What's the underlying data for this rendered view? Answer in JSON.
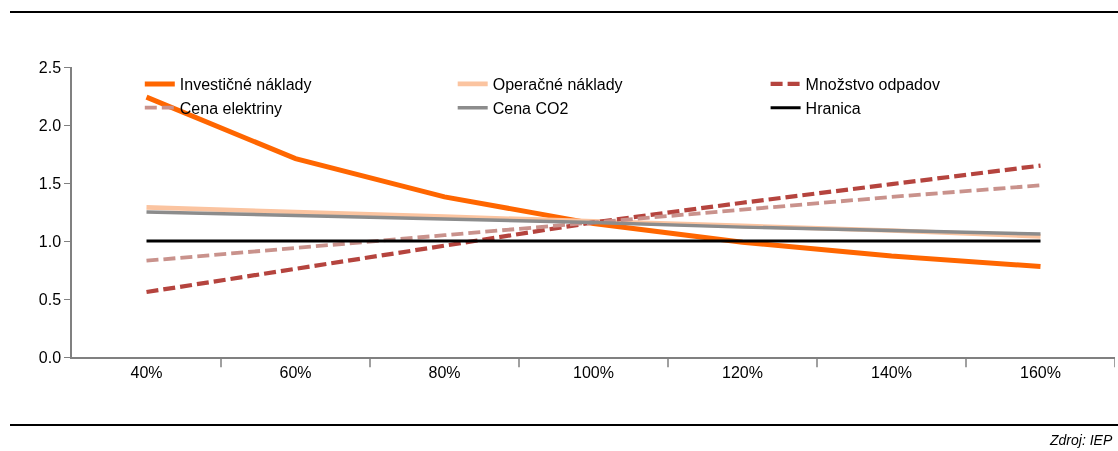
{
  "chart_data": {
    "type": "line",
    "categories": [
      "40%",
      "60%",
      "80%",
      "100%",
      "120%",
      "140%",
      "160%"
    ],
    "series": [
      {
        "name": "Investičné náklady",
        "color": "#ff6600",
        "line_style": "solid",
        "values": [
          2.24,
          1.71,
          1.38,
          1.15,
          0.99,
          0.87,
          0.78
        ]
      },
      {
        "name": "Operačné náklady",
        "color": "#fbc4a0",
        "line_style": "solid",
        "values": [
          1.29,
          1.25,
          1.21,
          1.17,
          1.13,
          1.09,
          1.04
        ]
      },
      {
        "name": "Množstvo odpadov",
        "color": "#b5443e",
        "line_style": "dashed",
        "values": [
          0.56,
          0.76,
          0.96,
          1.16,
          1.33,
          1.49,
          1.65
        ]
      },
      {
        "name": "Cena elektriny",
        "color": "#c9928c",
        "line_style": "dashed",
        "values": [
          0.83,
          0.94,
          1.05,
          1.16,
          1.27,
          1.38,
          1.48
        ]
      },
      {
        "name": "Cena CO2",
        "color": "#8c8c8c",
        "line_style": "solid",
        "values": [
          1.25,
          1.22,
          1.19,
          1.16,
          1.12,
          1.09,
          1.06
        ]
      },
      {
        "name": "Hranica",
        "color": "#000000",
        "line_style": "solid",
        "values": [
          1,
          1,
          1,
          1,
          1,
          1,
          1
        ]
      }
    ],
    "ylim": [
      0,
      2.5
    ],
    "yticks": [
      {
        "value": 0,
        "label": "0.0"
      },
      {
        "value": 0.5,
        "label": "0.5"
      },
      {
        "value": 1,
        "label": "1.0"
      },
      {
        "value": 1.5,
        "label": "1.5"
      },
      {
        "value": 2,
        "label": "2.0"
      },
      {
        "value": 2.5,
        "label": "2.5"
      }
    ],
    "grid": false,
    "legend": "top",
    "marker": "none",
    "annotations": [
      "Zdroj: IEP"
    ]
  }
}
